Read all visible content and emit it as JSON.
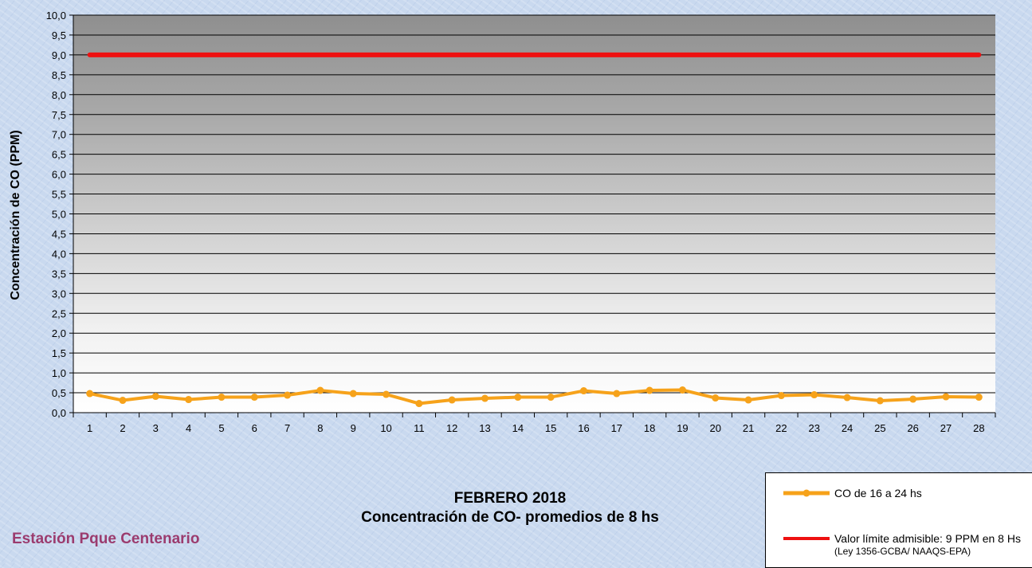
{
  "chart_data": {
    "type": "line",
    "ylabel": "Concentración de CO (PPM)",
    "ylim": [
      0,
      10
    ],
    "ytick_step": 0.5,
    "ytick_labels": [
      "0,0",
      "0,5",
      "1,0",
      "1,5",
      "2,0",
      "2,5",
      "3,0",
      "3,5",
      "4,0",
      "4,5",
      "5,0",
      "5,5",
      "6,0",
      "6,5",
      "7,0",
      "7,5",
      "8,0",
      "8,5",
      "9,0",
      "9,5",
      "10,0"
    ],
    "categories": [
      "1",
      "2",
      "3",
      "4",
      "5",
      "6",
      "7",
      "8",
      "9",
      "10",
      "11",
      "12",
      "13",
      "14",
      "15",
      "16",
      "17",
      "18",
      "19",
      "20",
      "21",
      "22",
      "23",
      "24",
      "25",
      "26",
      "27",
      "28"
    ],
    "series": [
      {
        "name": "CO de 16 a 24 hs",
        "color": "#f6a21a",
        "values": [
          0.48,
          0.31,
          0.41,
          0.33,
          0.39,
          0.39,
          0.44,
          0.56,
          0.48,
          0.46,
          0.23,
          0.32,
          0.36,
          0.39,
          0.39,
          0.55,
          0.48,
          0.56,
          0.57,
          0.37,
          0.32,
          0.43,
          0.45,
          0.38,
          0.3,
          0.34,
          0.4,
          0.39
        ]
      },
      {
        "name": "Valor límite admisible: 9 PPM en 8 Hs",
        "name_note": "(Ley 1356-GCBA/ NAAQS-EPA)",
        "color": "#ee1111",
        "values": [
          9,
          9,
          9,
          9,
          9,
          9,
          9,
          9,
          9,
          9,
          9,
          9,
          9,
          9,
          9,
          9,
          9,
          9,
          9,
          9,
          9,
          9,
          9,
          9,
          9,
          9,
          9,
          9
        ]
      }
    ],
    "grid": true,
    "legend": "bottom-right"
  },
  "titles": {
    "line1": "FEBRERO 2018",
    "line2": "Concentración de CO- promedios de 8 hs"
  },
  "station": "Estación Pque Centenario"
}
